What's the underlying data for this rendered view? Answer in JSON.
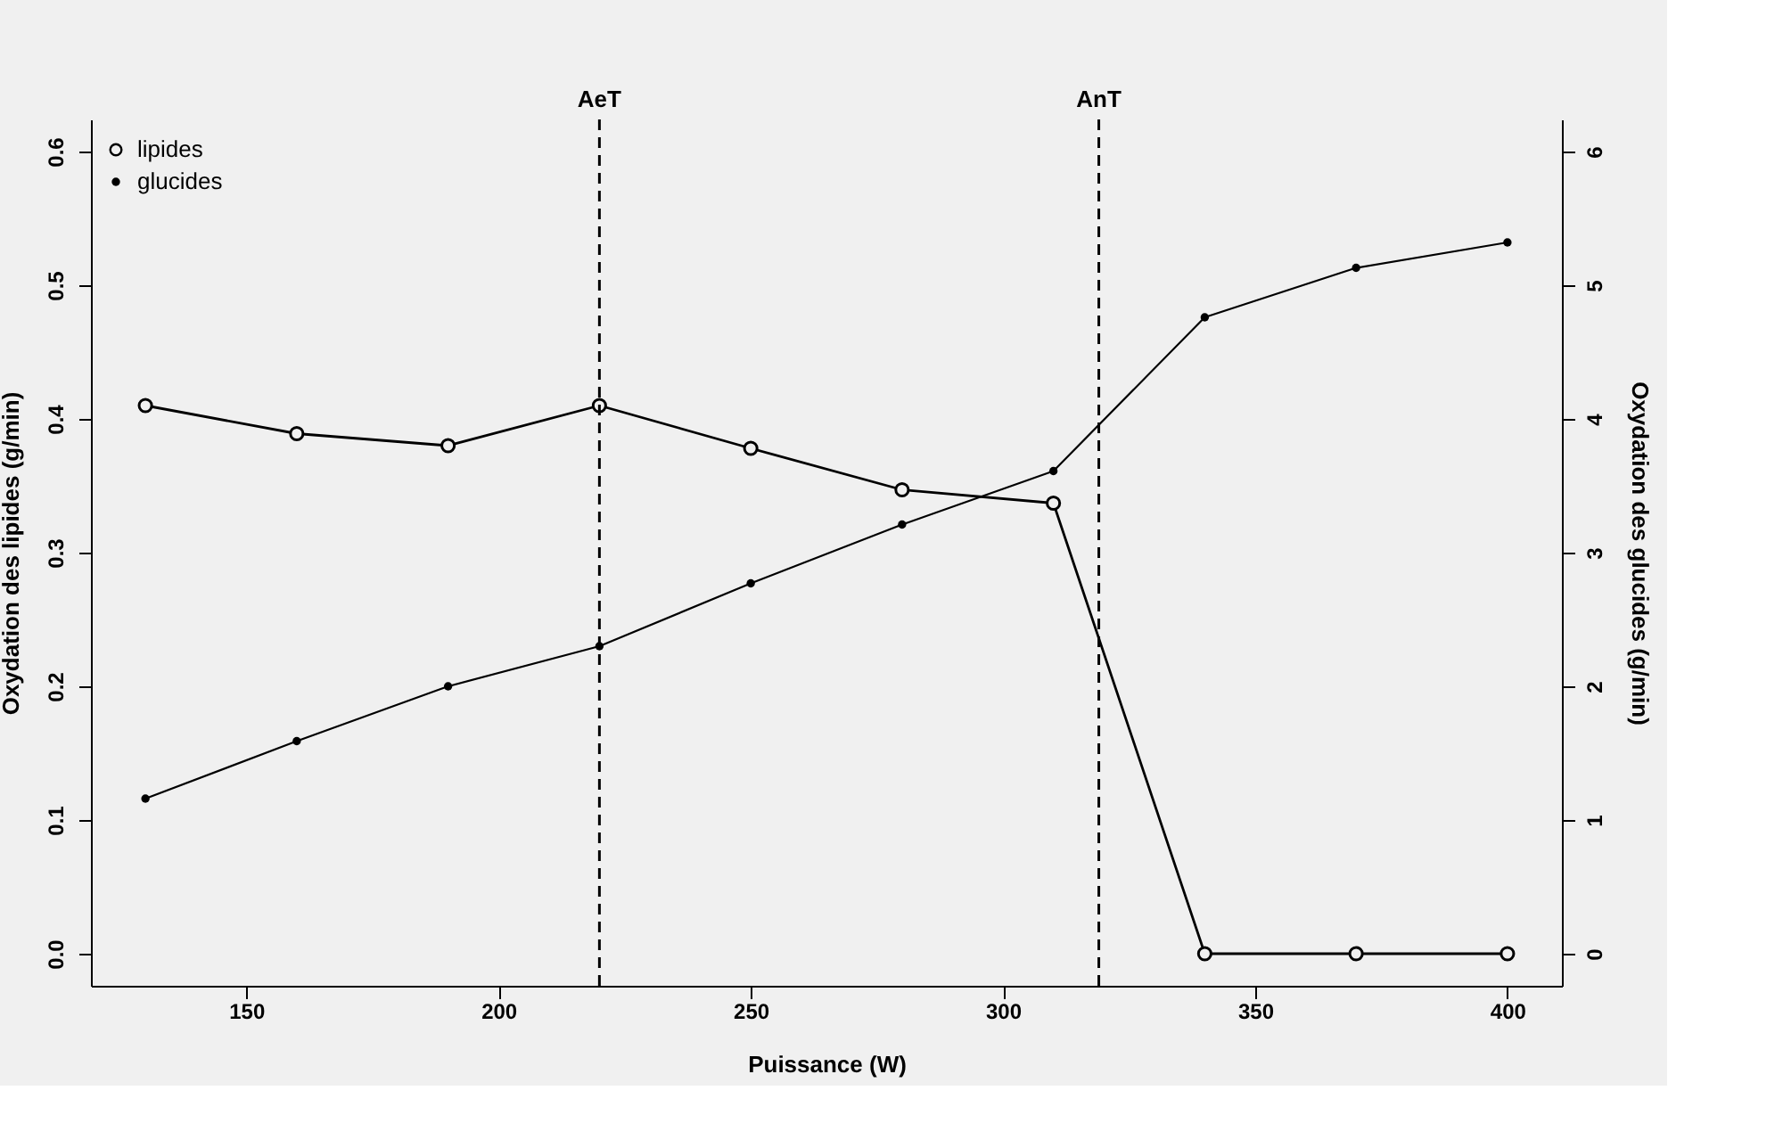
{
  "chart_data": {
    "type": "line",
    "xlabel": "Puissance (W)",
    "ylabel": "Oxydation des lipides (g/min)",
    "y2label": "Oxydation des glucides (g/min)",
    "x": [
      130,
      160,
      190,
      220,
      250,
      280,
      310,
      340,
      370,
      400
    ],
    "series": [
      {
        "name": "lipides",
        "color": "#000000",
        "marker": "circle",
        "values": [
          0.41,
          0.389,
          0.38,
          0.41,
          0.378,
          0.347,
          0.337,
          0,
          0,
          0
        ]
      },
      {
        "name": "glucides",
        "color": "#000000",
        "marker": "circle",
        "axis": "y2",
        "values": [
          1.16,
          1.59,
          2.0,
          2.3,
          2.77,
          3.21,
          3.61,
          4.76,
          5.13,
          5.32
        ]
      }
    ],
    "xlim": [
      119.2,
      410.8
    ],
    "xticks": [
      150,
      200,
      250,
      300,
      350,
      400
    ],
    "ylim": [
      -0.024,
      0.624
    ],
    "yticks": [
      {
        "value": 0,
        "label": "0.0"
      },
      0.1,
      0.2,
      0.3,
      0.4,
      0.5,
      0.6
    ],
    "y2lim": [
      -0.24,
      6.24
    ],
    "y2ticks": [
      0,
      1,
      2,
      3,
      4,
      5,
      6
    ],
    "ref_lines": [
      {
        "axis": "x",
        "value": 220,
        "label": "AeT",
        "line_style": "dashed"
      },
      {
        "axis": "x",
        "value": 319,
        "label": "AnT",
        "line_style": "dashed"
      }
    ],
    "legend": "top left",
    "grid": false,
    "line_style": "solid"
  }
}
